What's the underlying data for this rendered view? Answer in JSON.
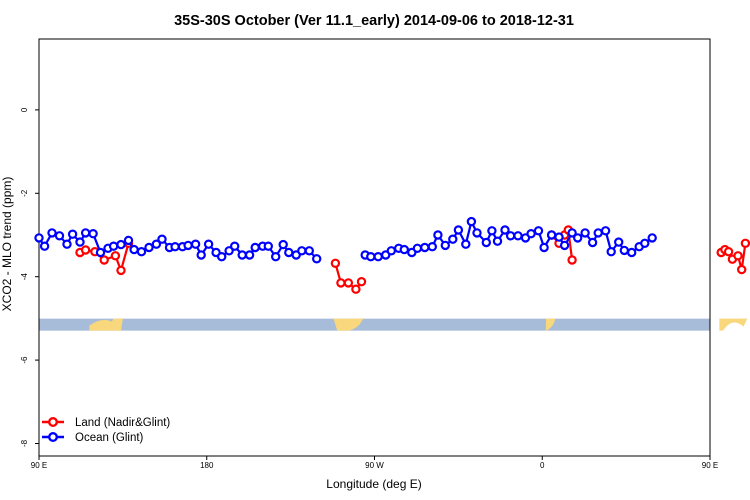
{
  "chart_data": {
    "type": "line",
    "title": "35S-30S October (Ver 11.1_early)   2014-09-06 to 2018-12-31",
    "xlabel": "Longitude (deg E)",
    "ylabel": "XCO2 - MLO trend (ppm)",
    "xlim": [
      90,
      450
    ],
    "ylim": [
      -8.3,
      1.7
    ],
    "xticks": [
      {
        "value": 90,
        "label": "90 E"
      },
      {
        "value": 180,
        "label": "180"
      },
      {
        "value": 270,
        "label": "90 W"
      },
      {
        "value": 360,
        "label": "0"
      },
      {
        "value": 450,
        "label": "90 E"
      },
      {
        "value": 540,
        "label": "180"
      }
    ],
    "yticks": [
      0,
      -2,
      -4,
      -6,
      -8
    ],
    "legend": {
      "position": "bottom-left",
      "entries": [
        "Land (Nadir&Glint)",
        "Ocean (Glint)"
      ]
    },
    "colors": {
      "land": "#ff0000",
      "ocean": "#0000ff",
      "ocean_strip": "#a7bcd9",
      "land_strip": "#f8d77d"
    },
    "series": [
      {
        "name": "Land (Nadir&Glint)",
        "color": "#ff0000",
        "segments": [
          [
            [
              112,
              -3.42
            ],
            [
              115,
              -3.36
            ],
            [
              120,
              -3.4
            ],
            [
              125,
              -3.6
            ],
            [
              131,
              -3.5
            ],
            [
              134,
              -3.85
            ],
            [
              138,
              -3.2
            ]
          ],
          [
            [
              249,
              -3.68
            ],
            [
              252,
              -4.15
            ],
            [
              256,
              -4.15
            ],
            [
              260,
              -4.3
            ],
            [
              263,
              -4.12
            ]
          ],
          [
            [
              365,
              -3
            ],
            [
              369,
              -3.2
            ],
            [
              372,
              -3
            ],
            [
              374,
              -2.88
            ],
            [
              376,
              -3.6
            ]
          ],
          [
            [
              456,
              -3.42
            ],
            [
              458,
              -3.35
            ],
            [
              460,
              -3.4
            ],
            [
              462,
              -3.58
            ],
            [
              465,
              -3.5
            ],
            [
              467,
              -3.83
            ],
            [
              469,
              -3.2
            ]
          ]
        ]
      },
      {
        "name": "Ocean (Glint)",
        "color": "#0000ff",
        "segments": [
          [
            [
              90,
              -3.07
            ],
            [
              93,
              -3.27
            ],
            [
              97,
              -2.95
            ],
            [
              101,
              -3.02
            ],
            [
              105,
              -3.22
            ],
            [
              108,
              -2.98
            ],
            [
              112,
              -3.17
            ],
            [
              115,
              -2.95
            ],
            [
              119,
              -2.97
            ],
            [
              123,
              -3.42
            ],
            [
              127,
              -3.32
            ],
            [
              130,
              -3.27
            ],
            [
              134,
              -3.23
            ],
            [
              138,
              -3.13
            ],
            [
              141,
              -3.35
            ],
            [
              145,
              -3.4
            ],
            [
              149,
              -3.3
            ],
            [
              153,
              -3.22
            ],
            [
              156,
              -3.1
            ],
            [
              160,
              -3.3
            ],
            [
              163,
              -3.28
            ],
            [
              167,
              -3.28
            ],
            [
              170,
              -3.25
            ],
            [
              174,
              -3.22
            ],
            [
              177,
              -3.48
            ],
            [
              181,
              -3.22
            ],
            [
              185,
              -3.42
            ],
            [
              188,
              -3.52
            ],
            [
              192,
              -3.38
            ],
            [
              195,
              -3.27
            ],
            [
              199,
              -3.48
            ],
            [
              203,
              -3.48
            ],
            [
              206,
              -3.3
            ],
            [
              210,
              -3.27
            ],
            [
              213,
              -3.27
            ],
            [
              217,
              -3.52
            ],
            [
              221,
              -3.23
            ],
            [
              224,
              -3.42
            ],
            [
              228,
              -3.48
            ],
            [
              231,
              -3.38
            ],
            [
              235,
              -3.38
            ],
            [
              239,
              -3.57
            ]
          ],
          [
            [
              265,
              -3.48
            ],
            [
              268,
              -3.52
            ],
            [
              272,
              -3.52
            ],
            [
              276,
              -3.48
            ],
            [
              279,
              -3.38
            ],
            [
              283,
              -3.32
            ],
            [
              286,
              -3.35
            ],
            [
              290,
              -3.42
            ],
            [
              293,
              -3.32
            ],
            [
              297,
              -3.3
            ],
            [
              301,
              -3.28
            ],
            [
              304,
              -3
            ],
            [
              308,
              -3.25
            ],
            [
              312,
              -3.1
            ],
            [
              315,
              -2.88
            ],
            [
              319,
              -3.22
            ],
            [
              322,
              -2.68
            ],
            [
              325,
              -2.95
            ],
            [
              330,
              -3.18
            ],
            [
              333,
              -2.9
            ],
            [
              336,
              -3.15
            ],
            [
              340,
              -2.88
            ],
            [
              343,
              -3.02
            ],
            [
              347,
              -3.02
            ],
            [
              351,
              -3.07
            ],
            [
              354,
              -2.97
            ],
            [
              358,
              -2.9
            ],
            [
              361,
              -3.3
            ],
            [
              365,
              -3
            ],
            [
              369,
              -3.05
            ],
            [
              372,
              -3.25
            ],
            [
              376,
              -2.95
            ],
            [
              379,
              -3.07
            ],
            [
              383,
              -2.95
            ],
            [
              387,
              -3.18
            ],
            [
              390,
              -2.95
            ],
            [
              394,
              -2.9
            ],
            [
              397,
              -3.4
            ],
            [
              401,
              -3.17
            ],
            [
              404,
              -3.37
            ],
            [
              408,
              -3.42
            ],
            [
              412,
              -3.28
            ],
            [
              415,
              -3.2
            ],
            [
              419,
              -3.07
            ]
          ]
        ]
      }
    ]
  }
}
